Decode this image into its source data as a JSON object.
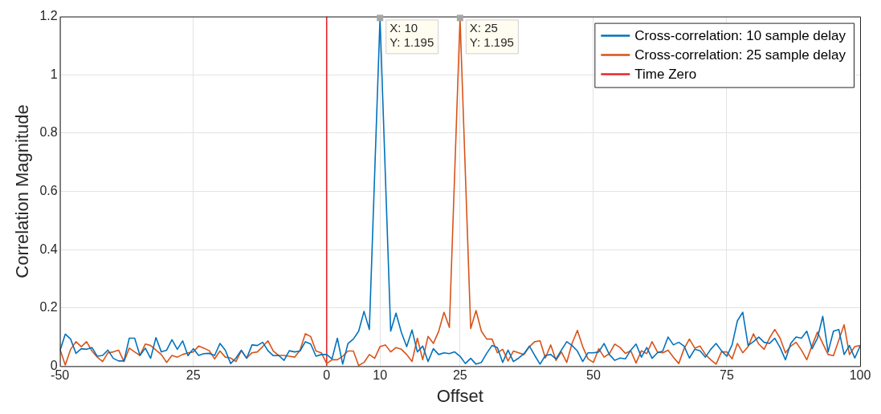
{
  "chart_data": {
    "type": "line",
    "xlabel": "Offset",
    "ylabel": "Correlation Magnitude",
    "xlim": [
      -50,
      100
    ],
    "ylim": [
      0,
      1.2
    ],
    "xticks": [
      -50,
      {
        "value": -25,
        "label": "25"
      },
      0,
      10,
      25,
      50,
      75,
      100
    ],
    "yticks": [
      0,
      0.2,
      0.4,
      0.6,
      0.8,
      1,
      1.2
    ],
    "grid": true,
    "legend": "top right",
    "annotations": [
      {
        "text": "X: 10\nY: 1.195",
        "x": 10,
        "y": 1.195
      },
      {
        "text": "X: 25\nY: 1.195",
        "x": 25,
        "y": 1.195
      }
    ],
    "series": [
      {
        "name": "Cross-correlation: 10 sample delay",
        "color": "#0072bd",
        "x": [
          -50,
          -49,
          -48,
          -47,
          -46,
          -45,
          -44,
          -43,
          -42,
          -41,
          -40,
          -39,
          -38,
          -37,
          -36,
          -35,
          -34,
          -33,
          -32,
          -31,
          -30,
          -29,
          -28,
          -27,
          -26,
          -25,
          -24,
          -23,
          -22,
          -21,
          -20,
          -19,
          -18,
          -17,
          -16,
          -15,
          -14,
          -13,
          -12,
          -11,
          -10,
          -9,
          -8,
          -7,
          -6,
          -5,
          -4,
          -3,
          -2,
          -1,
          0,
          1,
          2,
          3,
          4,
          5,
          6,
          7,
          8,
          10,
          12,
          13,
          14,
          15,
          16,
          17,
          18,
          19,
          20,
          21,
          22,
          23,
          24,
          25,
          26,
          27,
          28,
          29,
          30,
          31,
          32,
          33,
          34,
          35,
          36,
          37,
          38,
          39,
          40,
          41,
          42,
          43,
          44,
          45,
          46,
          47,
          48,
          49,
          50,
          51,
          52,
          53,
          54,
          55,
          56,
          57,
          58,
          59,
          60,
          61,
          62,
          63,
          64,
          65,
          66,
          67,
          68,
          69,
          70,
          71,
          72,
          73,
          74,
          75,
          76,
          77,
          78,
          79,
          80,
          81,
          82,
          83,
          84,
          85,
          86,
          87,
          88,
          89,
          90,
          91,
          92,
          93,
          94,
          95,
          96,
          97,
          98,
          99,
          100
        ],
        "values": [
          0.053,
          0.11,
          0.093,
          0.044,
          0.06,
          0.058,
          0.064,
          0.034,
          0.037,
          0.055,
          0.027,
          0.018,
          0.018,
          0.096,
          0.096,
          0.037,
          0.062,
          0.027,
          0.098,
          0.049,
          0.055,
          0.091,
          0.058,
          0.087,
          0.036,
          0.06,
          0.037,
          0.043,
          0.044,
          0.037,
          0.078,
          0.055,
          0.009,
          0.028,
          0.055,
          0.027,
          0.073,
          0.071,
          0.082,
          0.053,
          0.036,
          0.037,
          0.02,
          0.053,
          0.049,
          0.052,
          0.084,
          0.076,
          0.034,
          0.04,
          0.04,
          0.025,
          0.096,
          0.007,
          0.078,
          0.093,
          0.12,
          0.188,
          0.126,
          1.195,
          0.12,
          0.182,
          0.116,
          0.067,
          0.124,
          0.049,
          0.069,
          0.016,
          0.06,
          0.04,
          0.046,
          0.043,
          0.049,
          0.034,
          0.009,
          0.027,
          0.007,
          0.013,
          0.044,
          0.071,
          0.064,
          0.013,
          0.055,
          0.016,
          0.028,
          0.043,
          0.069,
          0.037,
          0.007,
          0.037,
          0.04,
          0.025,
          0.055,
          0.084,
          0.071,
          0.052,
          0.016,
          0.046,
          0.046,
          0.049,
          0.078,
          0.04,
          0.02,
          0.028,
          0.025,
          0.055,
          0.076,
          0.031,
          0.064,
          0.027,
          0.046,
          0.052,
          0.1,
          0.073,
          0.082,
          0.069,
          0.028,
          0.058,
          0.053,
          0.031,
          0.058,
          0.078,
          0.053,
          0.034,
          0.073,
          0.156,
          0.185,
          0.071,
          0.084,
          0.1,
          0.082,
          0.078,
          0.096,
          0.064,
          0.022,
          0.078,
          0.1,
          0.096,
          0.12,
          0.06,
          0.096,
          0.171,
          0.049,
          0.12,
          0.126,
          0.04,
          0.071,
          0.028,
          0.069
        ]
      },
      {
        "name": "Cross-correlation: 25 sample delay",
        "color": "#d95319",
        "x": [
          -50,
          -49,
          -48,
          -47,
          -46,
          -45,
          -44,
          -43,
          -42,
          -41,
          -40,
          -39,
          -38,
          -37,
          -36,
          -35,
          -34,
          -33,
          -32,
          -31,
          -30,
          -29,
          -28,
          -27,
          -26,
          -25,
          -24,
          -23,
          -22,
          -21,
          -20,
          -19,
          -18,
          -17,
          -16,
          -15,
          -14,
          -13,
          -12,
          -11,
          -10,
          -9,
          -8,
          -7,
          -6,
          -5,
          -4,
          -3,
          -2,
          -1,
          0,
          1,
          2,
          3,
          4,
          5,
          6,
          7,
          8,
          9,
          10,
          11,
          12,
          13,
          14,
          15,
          16,
          17,
          18,
          19,
          20,
          21,
          22,
          23,
          25,
          27,
          28,
          29,
          30,
          31,
          32,
          33,
          34,
          35,
          36,
          37,
          38,
          39,
          40,
          41,
          42,
          43,
          44,
          45,
          46,
          47,
          48,
          49,
          50,
          51,
          52,
          53,
          54,
          55,
          56,
          57,
          58,
          59,
          60,
          61,
          62,
          63,
          64,
          65,
          66,
          67,
          68,
          69,
          70,
          71,
          72,
          73,
          74,
          75,
          76,
          77,
          78,
          79,
          80,
          81,
          82,
          83,
          84,
          85,
          86,
          87,
          88,
          89,
          90,
          91,
          92,
          93,
          94,
          95,
          96,
          97,
          98,
          99,
          100
        ],
        "values": [
          0.058,
          0.004,
          0.058,
          0.084,
          0.067,
          0.084,
          0.052,
          0.031,
          0.016,
          0.046,
          0.049,
          0.055,
          0.016,
          0.062,
          0.049,
          0.037,
          0.076,
          0.071,
          0.055,
          0.04,
          0.013,
          0.037,
          0.031,
          0.04,
          0.046,
          0.049,
          0.069,
          0.062,
          0.053,
          0.025,
          0.052,
          0.031,
          0.028,
          0.016,
          0.053,
          0.028,
          0.046,
          0.049,
          0.067,
          0.087,
          0.052,
          0.037,
          0.037,
          0.034,
          0.031,
          0.055,
          0.111,
          0.102,
          0.052,
          0.046,
          0.009,
          0.022,
          0.022,
          0.034,
          0.052,
          0.052,
          0.002,
          0.013,
          0.04,
          0.027,
          0.067,
          0.073,
          0.049,
          0.064,
          0.058,
          0.04,
          0.016,
          0.096,
          0.022,
          0.102,
          0.078,
          0.12,
          0.185,
          0.133,
          1.195,
          0.129,
          0.191,
          0.12,
          0.093,
          0.093,
          0.046,
          0.058,
          0.018,
          0.052,
          0.046,
          0.04,
          0.067,
          0.084,
          0.087,
          0.028,
          0.073,
          0.02,
          0.049,
          0.013,
          0.078,
          0.123,
          0.067,
          0.025,
          0.013,
          0.06,
          0.031,
          0.043,
          0.076,
          0.064,
          0.044,
          0.053,
          0.011,
          0.053,
          0.043,
          0.084,
          0.049,
          0.046,
          0.055,
          0.031,
          0.009,
          0.06,
          0.093,
          0.062,
          0.069,
          0.04,
          0.022,
          0.007,
          0.049,
          0.049,
          0.025,
          0.078,
          0.046,
          0.067,
          0.111,
          0.076,
          0.058,
          0.096,
          0.126,
          0.096,
          0.046,
          0.069,
          0.082,
          0.055,
          0.022,
          0.071,
          0.117,
          0.078,
          0.04,
          0.036,
          0.089,
          0.142,
          0.04,
          0.067,
          0.071
        ]
      },
      {
        "name": "Time Zero",
        "color": "#e8262b",
        "x": [
          0,
          0
        ],
        "values": [
          0,
          1.2
        ]
      }
    ]
  }
}
